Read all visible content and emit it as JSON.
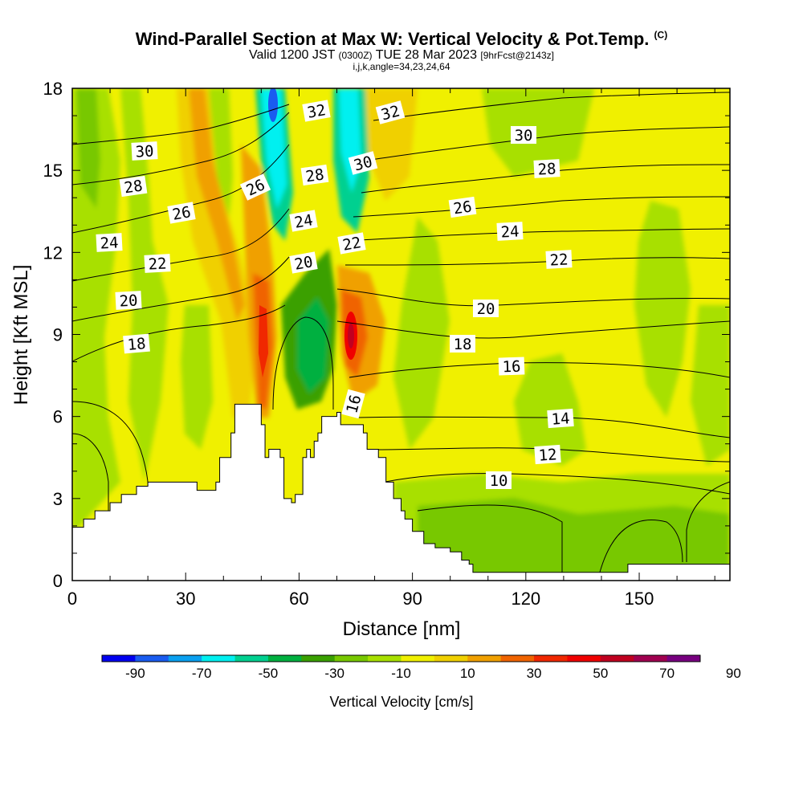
{
  "header": {
    "title": "Wind-Parallel Section at Max W: Vertical Velocity & Pot.Temp.",
    "copyright": "(C)",
    "valid_prefix": "Valid 1200 JST",
    "valid_z": "(0300Z)",
    "valid_date": "TUE 28 Mar 2023",
    "valid_fcst": "[9hrFcst@2143z]",
    "indices": "i,j,k,angle=34,23,24,64"
  },
  "chart_data": {
    "type": "heatmap",
    "xlabel": "Distance [nm]",
    "ylabel": "Height [Kft MSL]",
    "xlim": [
      0,
      174
    ],
    "ylim": [
      0,
      18
    ],
    "xticks": [
      0,
      30,
      60,
      90,
      120,
      150
    ],
    "yticks": [
      0,
      3,
      6,
      9,
      12,
      15,
      18
    ],
    "colorbar": {
      "label": "Vertical Velocity [cm/s]",
      "ticks": [
        "-90",
        "-70",
        "-50",
        "-30",
        "-10",
        "10",
        "30",
        "50",
        "70",
        "90"
      ],
      "colors": [
        "#0000f0",
        "#1a5cf0",
        "#0aa0f0",
        "#00f0f0",
        "#00d090",
        "#00b040",
        "#3aa000",
        "#78c800",
        "#a8e000",
        "#f0f000",
        "#f0d000",
        "#f0a000",
        "#f06400",
        "#f02800",
        "#f00000",
        "#c00020",
        "#a00050",
        "#780080"
      ]
    },
    "terrain_kft": [
      [
        0,
        1.95
      ],
      [
        3,
        2.25
      ],
      [
        6,
        2.55
      ],
      [
        10,
        2.85
      ],
      [
        13,
        3.15
      ],
      [
        17,
        3.45
      ],
      [
        20,
        3.6
      ],
      [
        30,
        3.6
      ],
      [
        33,
        3.3
      ],
      [
        37,
        3.3
      ],
      [
        38,
        3.6
      ],
      [
        39,
        4.5
      ],
      [
        42,
        5.4
      ],
      [
        43,
        6.45
      ],
      [
        49,
        6.45
      ],
      [
        50,
        5.7
      ],
      [
        51,
        4.5
      ],
      [
        52,
        4.8
      ],
      [
        55,
        4.5
      ],
      [
        56,
        3.0
      ],
      [
        58,
        2.85
      ],
      [
        59,
        3.15
      ],
      [
        60,
        3.15
      ],
      [
        61,
        4.5
      ],
      [
        62,
        4.8
      ],
      [
        63,
        4.5
      ],
      [
        64,
        5.1
      ],
      [
        65,
        5.4
      ],
      [
        66,
        6.0
      ],
      [
        69,
        6.0
      ],
      [
        70,
        6.15
      ],
      [
        71,
        5.7
      ],
      [
        74,
        5.7
      ],
      [
        77,
        5.4
      ],
      [
        78,
        4.8
      ],
      [
        81,
        4.5
      ],
      [
        83,
        3.6
      ],
      [
        85,
        3.0
      ],
      [
        87,
        2.55
      ],
      [
        88,
        2.25
      ],
      [
        90,
        1.8
      ],
      [
        93,
        1.35
      ],
      [
        96,
        1.2
      ],
      [
        100,
        1.05
      ],
      [
        103,
        0.75
      ],
      [
        105,
        0.6
      ],
      [
        106,
        0.3
      ],
      [
        146,
        0.3
      ],
      [
        147,
        0.6
      ],
      [
        174,
        0.6
      ]
    ],
    "updraft_max_cms": 70,
    "downdraft_min_cms": -70,
    "theta_contours": [
      "10",
      "12",
      "14",
      "16",
      "16",
      "18",
      "18",
      "20",
      "20",
      "20",
      "22",
      "22",
      "22",
      "24",
      "24",
      "24",
      "26",
      "26",
      "26",
      "28",
      "28",
      "28",
      "30",
      "30",
      "30",
      "32",
      "32"
    ]
  }
}
